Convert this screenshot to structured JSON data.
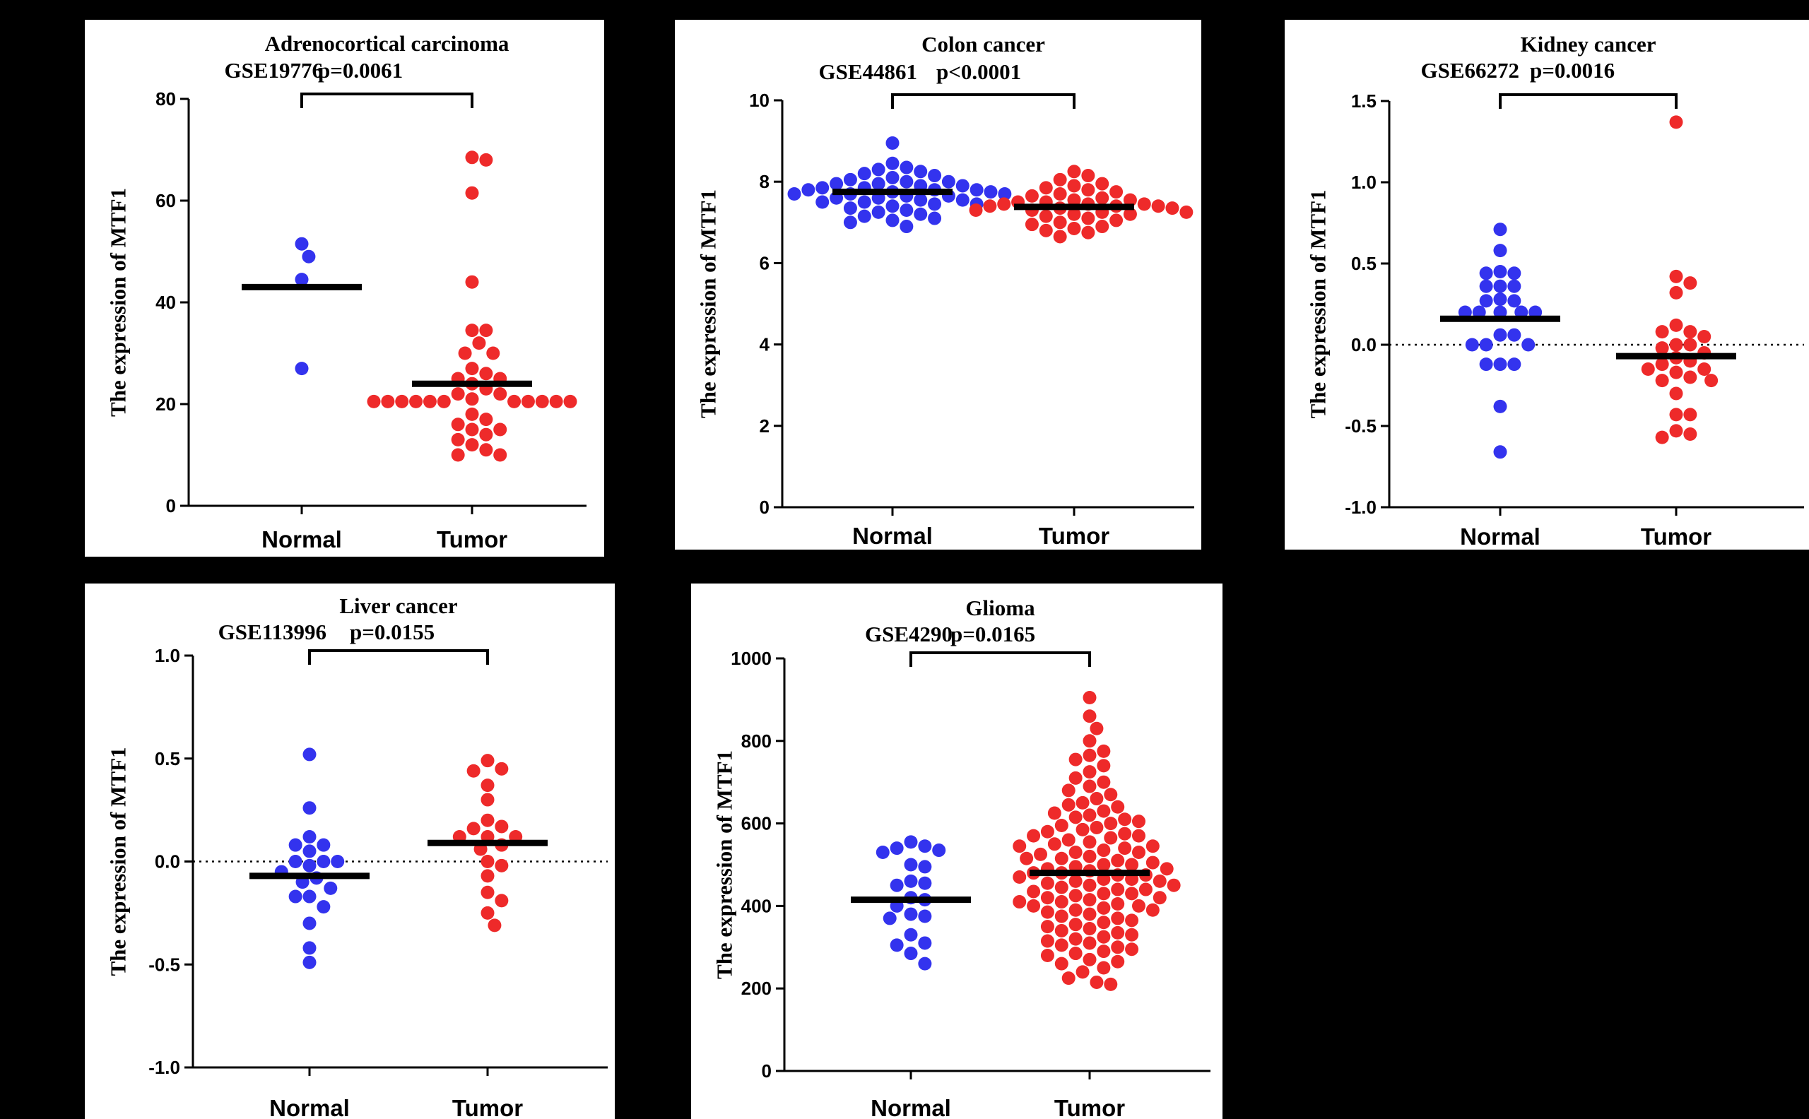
{
  "colors": {
    "normal": "#3333ee",
    "tumor": "#ee2a2a",
    "background": "#000000",
    "panel": "#ffffff"
  },
  "chart_data": [
    {
      "type": "scatter",
      "title": "Adrenocortical carcinoma",
      "dataset": "GSE19776",
      "pvalue": "p=0.0061",
      "ylabel": "The expression of MTF1",
      "ylim": [
        0,
        80
      ],
      "yticks": [
        0,
        20,
        40,
        60,
        80
      ],
      "yticklabels": [
        "0",
        "20",
        "40",
        "60",
        "80"
      ],
      "dashed_zero": false,
      "categories": [
        "Normal",
        "Tumor"
      ],
      "series": [
        {
          "name": "Normal",
          "mean": 43,
          "values": [
            51.5,
            49,
            44.5,
            27
          ]
        },
        {
          "name": "Tumor",
          "mean": 24,
          "values": [
            68.5,
            68,
            61.5,
            44,
            34.5,
            34.5,
            32,
            30,
            30,
            27,
            26,
            25,
            25,
            24,
            23,
            22,
            22,
            21,
            20.5,
            20.5,
            20.5,
            20.5,
            20.5,
            20.5,
            20.5,
            20.5,
            20.5,
            20.5,
            20.5,
            18,
            17,
            16,
            15,
            15,
            14,
            13,
            12,
            11,
            10,
            10
          ]
        }
      ]
    },
    {
      "type": "scatter",
      "title": "Colon cancer",
      "dataset": "GSE44861",
      "pvalue": "p<0.0001",
      "ylabel": "The expression of MTF1",
      "ylim": [
        0,
        10
      ],
      "yticks": [
        0,
        2,
        4,
        6,
        8,
        10
      ],
      "yticklabels": [
        "0",
        "2",
        "4",
        "6",
        "8",
        "10"
      ],
      "dashed_zero": false,
      "categories": [
        "Normal",
        "Tumor"
      ],
      "series": [
        {
          "name": "Normal",
          "mean": 7.75,
          "values": [
            8.95,
            8.45,
            8.35,
            8.3,
            8.25,
            8.2,
            8.15,
            8.1,
            8.05,
            8.0,
            8.0,
            7.95,
            7.95,
            7.9,
            7.9,
            7.85,
            7.85,
            7.8,
            7.8,
            7.8,
            7.75,
            7.75,
            7.7,
            7.7,
            7.7,
            7.65,
            7.65,
            7.6,
            7.6,
            7.55,
            7.55,
            7.5,
            7.5,
            7.45,
            7.45,
            7.4,
            7.35,
            7.3,
            7.25,
            7.2,
            7.15,
            7.1,
            7.05,
            7.0,
            6.9
          ]
        },
        {
          "name": "Tumor",
          "mean": 7.38,
          "values": [
            8.25,
            8.15,
            8.05,
            7.95,
            7.9,
            7.85,
            7.8,
            7.75,
            7.7,
            7.65,
            7.6,
            7.55,
            7.55,
            7.5,
            7.5,
            7.45,
            7.45,
            7.45,
            7.4,
            7.4,
            7.4,
            7.35,
            7.35,
            7.3,
            7.3,
            7.25,
            7.25,
            7.2,
            7.2,
            7.15,
            7.1,
            7.05,
            7.0,
            6.95,
            6.9,
            6.85,
            6.8,
            6.75,
            6.65
          ]
        }
      ]
    },
    {
      "type": "scatter",
      "title": "Kidney cancer",
      "dataset": "GSE66272",
      "pvalue": "p=0.0016",
      "ylabel": "The expression of MTF1",
      "ylim": [
        -1.0,
        1.5
      ],
      "yticks": [
        -1.0,
        -0.5,
        0.0,
        0.5,
        1.0,
        1.5
      ],
      "yticklabels": [
        "-1.0",
        "-0.5",
        "0.0",
        "0.5",
        "1.0",
        "1.5"
      ],
      "dashed_zero": true,
      "categories": [
        "Normal",
        "Tumor"
      ],
      "series": [
        {
          "name": "Normal",
          "mean": 0.16,
          "values": [
            0.71,
            0.58,
            0.45,
            0.44,
            0.44,
            0.36,
            0.36,
            0.36,
            0.28,
            0.27,
            0.27,
            0.2,
            0.2,
            0.2,
            0.2,
            0.2,
            0.06,
            0.06,
            0.0,
            0.0,
            0.0,
            -0.12,
            -0.12,
            -0.12,
            -0.38,
            -0.66
          ]
        },
        {
          "name": "Tumor",
          "mean": -0.07,
          "values": [
            1.37,
            0.42,
            0.38,
            0.32,
            0.12,
            0.08,
            0.08,
            0.05,
            0.0,
            0.0,
            -0.02,
            -0.05,
            -0.08,
            -0.1,
            -0.12,
            -0.15,
            -0.15,
            -0.17,
            -0.2,
            -0.22,
            -0.22,
            -0.3,
            -0.43,
            -0.43,
            -0.53,
            -0.55,
            -0.57
          ]
        }
      ]
    },
    {
      "type": "scatter",
      "title": "Liver cancer",
      "dataset": "GSE113996",
      "pvalue": "p=0.0155",
      "ylabel": "The expression of MTF1",
      "ylim": [
        -1.0,
        1.0
      ],
      "yticks": [
        -1.0,
        -0.5,
        0.0,
        0.5,
        1.0
      ],
      "yticklabels": [
        "-1.0",
        "-0.5",
        "0.0",
        "0.5",
        "1.0"
      ],
      "dashed_zero": true,
      "categories": [
        "Normal",
        "Tumor"
      ],
      "series": [
        {
          "name": "Normal",
          "mean": -0.07,
          "values": [
            0.52,
            0.26,
            0.12,
            0.08,
            0.08,
            0.05,
            0.0,
            0.0,
            0.0,
            -0.02,
            -0.05,
            -0.08,
            -0.1,
            -0.13,
            -0.17,
            -0.17,
            -0.22,
            -0.3,
            -0.42,
            -0.49
          ]
        },
        {
          "name": "Tumor",
          "mean": 0.09,
          "values": [
            0.49,
            0.45,
            0.44,
            0.37,
            0.3,
            0.2,
            0.17,
            0.16,
            0.12,
            0.12,
            0.12,
            0.08,
            0.06,
            0.0,
            -0.02,
            -0.07,
            -0.15,
            -0.19,
            -0.25,
            -0.31
          ]
        }
      ]
    },
    {
      "type": "scatter",
      "title": "Glioma",
      "dataset": "GSE4290",
      "pvalue": "p=0.0165",
      "ylabel": "The expression of MTF1",
      "ylim": [
        0,
        1000
      ],
      "yticks": [
        0,
        200,
        400,
        600,
        800,
        1000
      ],
      "yticklabels": [
        "0",
        "200",
        "400",
        "600",
        "800",
        "1000"
      ],
      "dashed_zero": false,
      "categories": [
        "Normal",
        "Tumor"
      ],
      "series": [
        {
          "name": "Normal",
          "mean": 415,
          "values": [
            555,
            545,
            540,
            535,
            530,
            500,
            495,
            460,
            455,
            450,
            420,
            415,
            400,
            380,
            375,
            370,
            330,
            310,
            305,
            285,
            260
          ]
        },
        {
          "name": "Tumor",
          "mean": 480,
          "values": [
            905,
            860,
            830,
            800,
            775,
            765,
            755,
            740,
            725,
            710,
            700,
            690,
            680,
            670,
            660,
            650,
            645,
            640,
            630,
            625,
            620,
            615,
            610,
            605,
            600,
            595,
            590,
            585,
            580,
            575,
            570,
            570,
            565,
            560,
            555,
            550,
            545,
            545,
            540,
            535,
            530,
            530,
            525,
            520,
            515,
            515,
            510,
            505,
            500,
            500,
            495,
            490,
            490,
            485,
            480,
            480,
            475,
            475,
            470,
            465,
            465,
            460,
            460,
            455,
            450,
            450,
            445,
            440,
            440,
            435,
            430,
            430,
            425,
            420,
            420,
            415,
            410,
            410,
            405,
            400,
            400,
            395,
            390,
            390,
            385,
            380,
            375,
            370,
            365,
            360,
            355,
            350,
            345,
            340,
            335,
            330,
            325,
            320,
            315,
            310,
            305,
            300,
            295,
            290,
            285,
            280,
            270,
            265,
            260,
            250,
            240,
            225,
            215,
            210
          ]
        }
      ]
    }
  ]
}
